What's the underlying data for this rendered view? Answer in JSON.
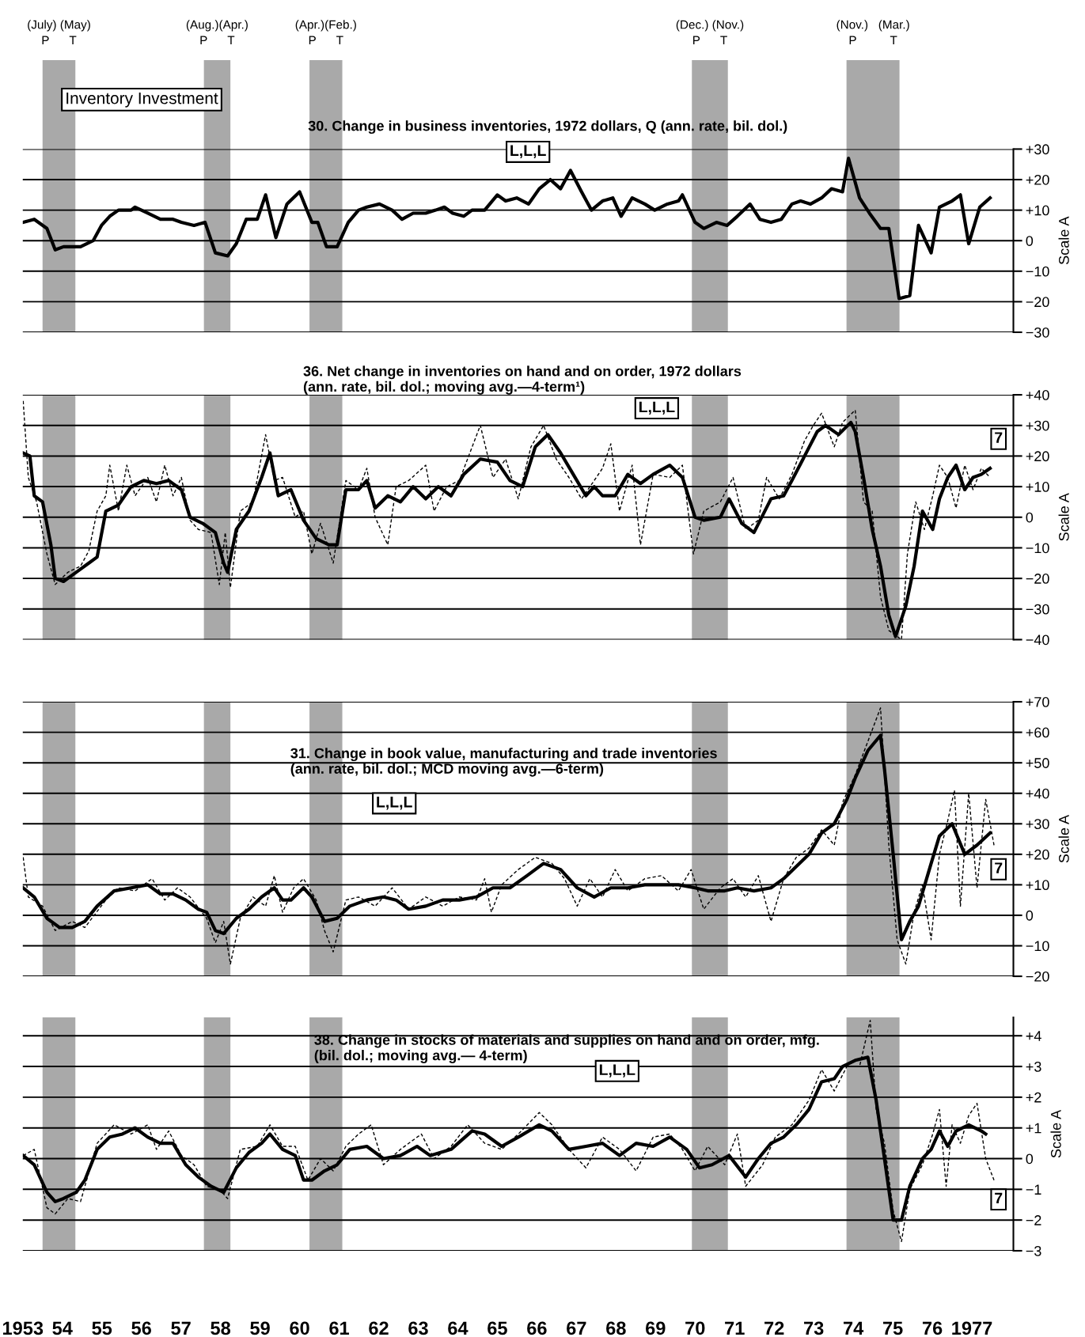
{
  "chart_data": [
    {
      "type": "line",
      "title": "Inventory Investment",
      "subtitle": "30. Change in business inventories, 1972 dollars, Q (ann. rate, bil. dol.)",
      "ylabel": "Scale A",
      "xlim": [
        1953.0,
        1978.05
      ],
      "ylim": [
        -30,
        30
      ],
      "yticks": [
        {
          "value": 30,
          "label": "+30"
        },
        {
          "value": 20,
          "label": "+20"
        },
        {
          "value": 10,
          "label": "+10"
        },
        0,
        {
          "value": -10,
          "label": "−10"
        },
        {
          "value": -20,
          "label": "−20"
        },
        {
          "value": -30,
          "label": "−30"
        }
      ],
      "tick_labels": "y",
      "grid": "y",
      "bands": [
        {
          "axis": "x",
          "from": 1953.5,
          "to": 1954.33,
          "color": "#8c8c8c",
          "label": "(July) (May)\nP      T"
        },
        {
          "axis": "x",
          "from": 1957.58,
          "to": 1958.25,
          "color": "#8c8c8c",
          "label": "(Aug.)(Apr.)\nP      T"
        },
        {
          "axis": "x",
          "from": 1960.25,
          "to": 1961.08,
          "color": "#8c8c8c",
          "label": "(Apr.)(Feb.)\nP      T"
        },
        {
          "axis": "x",
          "from": 1969.92,
          "to": 1970.83,
          "color": "#8c8c8c",
          "label": "(Dec.) (Nov.)\nP      T"
        },
        {
          "axis": "x",
          "from": 1973.83,
          "to": 1975.17,
          "color": "#8c8c8c",
          "label": "(Nov.)   (Mar.)\nP          T"
        }
      ],
      "annotations": [
        "L,L,L"
      ],
      "series": [
        {
          "color": "#000000",
          "line_style": "solid",
          "x": [
            1953.01,
            1953.29,
            1953.61,
            1953.82,
            1954.03,
            1954.25,
            1954.46,
            1954.78,
            1954.99,
            1955.2,
            1955.42,
            1955.74,
            1955.84,
            1956.16,
            1956.48,
            1956.8,
            1957.01,
            1957.33,
            1957.61,
            1957.87,
            1958.18,
            1958.4,
            1958.65,
            1958.93,
            1959.14,
            1959.4,
            1959.68,
            1960.0,
            1960.31,
            1960.46,
            1960.68,
            1960.95,
            1961.23,
            1961.49,
            1961.7,
            1962.02,
            1962.34,
            1962.59,
            1962.87,
            1963.19,
            1963.44,
            1963.66,
            1963.87,
            1964.15,
            1964.36,
            1964.68,
            1965.0,
            1965.21,
            1965.49,
            1965.79,
            1966.06,
            1966.34,
            1966.6,
            1966.85,
            1967.13,
            1967.38,
            1967.66,
            1967.92,
            1968.13,
            1968.41,
            1968.73,
            1968.98,
            1969.3,
            1969.58,
            1969.68,
            1970.0,
            1970.22,
            1970.54,
            1970.81,
            1971.07,
            1971.39,
            1971.64,
            1971.92,
            1972.18,
            1972.45,
            1972.67,
            1972.92,
            1973.2,
            1973.45,
            1973.73,
            1973.88,
            1974.16,
            1974.41,
            1974.69,
            1974.9,
            1975.16,
            1975.43,
            1975.65,
            1975.97,
            1976.18,
            1976.5,
            1976.71,
            1976.92,
            1977.2,
            1977.46
          ],
          "values": [
            6,
            7,
            4,
            -3,
            -2,
            -2,
            -2,
            0,
            5,
            8,
            10,
            10,
            11,
            9,
            7,
            7,
            6,
            5,
            6,
            -4,
            -5,
            -1,
            7,
            7,
            15,
            1,
            12,
            16,
            6,
            6,
            -2,
            -2,
            6,
            10,
            11,
            12,
            10,
            7,
            9,
            9,
            10,
            11,
            9,
            8,
            10,
            10,
            15,
            13,
            14,
            12,
            17,
            20,
            17,
            23,
            16,
            10,
            13,
            14,
            8,
            14,
            12,
            10,
            12,
            13,
            15,
            6,
            4,
            6,
            5,
            8,
            12,
            7,
            6,
            7,
            12,
            13,
            12,
            14,
            17,
            16,
            27,
            14,
            9,
            4,
            4,
            -19,
            -18,
            5,
            -4,
            11,
            13,
            15,
            -1,
            11,
            14
          ]
        }
      ]
    },
    {
      "type": "line",
      "title": "36. Net change in inventories on hand and on order, 1972 dollars\n(ann. rate, bil. dol.; moving avg.—4-term¹)",
      "ylabel": "Scale A",
      "xlim": [
        1953.0,
        1978.05
      ],
      "ylim": [
        -40,
        40
      ],
      "yticks": [
        {
          "value": 40,
          "label": "+40"
        },
        {
          "value": 30,
          "label": "+30"
        },
        {
          "value": 20,
          "label": "+20"
        },
        {
          "value": 10,
          "label": "+10"
        },
        0,
        {
          "value": -10,
          "label": "−10"
        },
        {
          "value": -20,
          "label": "−20"
        },
        {
          "value": -30,
          "label": "−30"
        },
        {
          "value": -40,
          "label": "−40"
        }
      ],
      "tick_labels": "y",
      "grid": "y",
      "bands": [
        {
          "axis": "x",
          "from": 1953.5,
          "to": 1954.33,
          "color": "#8c8c8c"
        },
        {
          "axis": "x",
          "from": 1957.58,
          "to": 1958.25,
          "color": "#8c8c8c"
        },
        {
          "axis": "x",
          "from": 1960.25,
          "to": 1961.08,
          "color": "#8c8c8c"
        },
        {
          "axis": "x",
          "from": 1969.92,
          "to": 1970.83,
          "color": "#8c8c8c"
        },
        {
          "axis": "x",
          "from": 1973.83,
          "to": 1975.17,
          "color": "#8c8c8c"
        }
      ],
      "annotations": [
        "L,L,L",
        "7"
      ],
      "series": [
        {
          "color": "#000000",
          "line_style": "dashed",
          "x": [
            1953.01,
            1953.14,
            1953.35,
            1953.61,
            1953.82,
            1954.14,
            1954.46,
            1954.67,
            1954.88,
            1955.1,
            1955.2,
            1955.42,
            1955.63,
            1955.84,
            1956.16,
            1956.38,
            1956.59,
            1956.8,
            1957.01,
            1957.23,
            1957.44,
            1957.76,
            1957.97,
            1958.12,
            1958.25,
            1958.5,
            1958.82,
            1959.14,
            1959.36,
            1959.57,
            1959.89,
            1960.1,
            1960.31,
            1960.53,
            1960.85,
            1961.17,
            1961.49,
            1961.7,
            1961.91,
            1962.23,
            1962.44,
            1962.76,
            1963.19,
            1963.4,
            1963.72,
            1964.04,
            1964.57,
            1964.89,
            1965.21,
            1965.53,
            1965.85,
            1966.17,
            1966.49,
            1966.81,
            1967.13,
            1967.45,
            1967.66,
            1967.87,
            1968.09,
            1968.41,
            1968.62,
            1968.94,
            1969.36,
            1969.68,
            1969.96,
            1970.22,
            1970.64,
            1970.96,
            1971.28,
            1971.6,
            1971.81,
            1972.13,
            1972.45,
            1972.77,
            1972.99,
            1973.2,
            1973.52,
            1973.73,
            1974.05,
            1974.26,
            1974.48,
            1974.69,
            1974.9,
            1975.22,
            1975.37,
            1975.58,
            1975.8,
            1976.01,
            1976.18,
            1976.39,
            1976.6,
            1976.82,
            1977.03,
            1977.24,
            1977.46
          ],
          "values": [
            38,
            13,
            5,
            -12,
            -22,
            -18,
            -16,
            -11,
            2,
            7,
            17,
            2,
            17,
            7,
            13,
            5,
            17,
            7,
            13,
            -1,
            -4,
            -5,
            -22,
            -5,
            -23,
            2,
            5,
            27,
            12,
            13,
            0,
            2,
            -12,
            -2,
            -15,
            12,
            9,
            16,
            0,
            -9,
            10,
            12,
            17,
            2,
            10,
            12,
            30,
            13,
            19,
            6,
            23,
            30,
            19,
            13,
            6,
            12,
            16,
            24,
            2,
            17,
            -9,
            14,
            13,
            17,
            -12,
            2,
            5,
            13,
            -4,
            -1,
            13,
            6,
            14,
            25,
            30,
            34,
            23,
            31,
            35,
            5,
            2,
            -26,
            -37,
            -40,
            -12,
            5,
            -4,
            7,
            17,
            13,
            3,
            17,
            9,
            16,
            13
          ]
        },
        {
          "color": "#000000",
          "line_style": "solid",
          "x": [
            1953.01,
            1953.18,
            1953.29,
            1953.5,
            1953.71,
            1953.82,
            1954.03,
            1954.35,
            1954.67,
            1954.88,
            1955.1,
            1955.42,
            1955.74,
            1956.06,
            1956.38,
            1956.69,
            1957.01,
            1957.23,
            1957.55,
            1957.87,
            1958.08,
            1958.18,
            1958.4,
            1958.72,
            1959.04,
            1959.25,
            1959.46,
            1959.78,
            1960.1,
            1960.42,
            1960.74,
            1960.95,
            1961.17,
            1961.49,
            1961.7,
            1961.91,
            1962.23,
            1962.55,
            1962.87,
            1963.19,
            1963.51,
            1963.83,
            1964.15,
            1964.57,
            1965.0,
            1965.32,
            1965.64,
            1965.96,
            1966.28,
            1966.6,
            1966.92,
            1967.24,
            1967.45,
            1967.66,
            1967.98,
            1968.3,
            1968.62,
            1968.94,
            1969.36,
            1969.68,
            1970.0,
            1970.22,
            1970.64,
            1970.86,
            1971.18,
            1971.49,
            1971.92,
            1972.24,
            1972.45,
            1972.77,
            1973.09,
            1973.3,
            1973.63,
            1973.94,
            1974.05,
            1974.26,
            1974.48,
            1974.69,
            1974.9,
            1975.07,
            1975.33,
            1975.54,
            1975.75,
            1976.01,
            1976.18,
            1976.39,
            1976.6,
            1976.82,
            1977.03,
            1977.24,
            1977.46
          ],
          "values": [
            21,
            20,
            7,
            5,
            -9,
            -20,
            -21,
            -18,
            -15,
            -13,
            2,
            4,
            10,
            12,
            11,
            12,
            9,
            0,
            -2,
            -5,
            -15,
            -18,
            -4,
            2,
            13,
            21,
            7,
            9,
            -1,
            -7,
            -9,
            -9,
            9,
            9,
            12,
            3,
            7,
            5,
            10,
            6,
            10,
            7,
            14,
            19,
            18,
            12,
            10,
            23,
            27,
            21,
            14,
            7,
            10,
            7,
            7,
            14,
            11,
            14,
            17,
            13,
            0,
            -1,
            0,
            6,
            -2,
            -5,
            6,
            7,
            12,
            20,
            28,
            30,
            27,
            31,
            28,
            13,
            -4,
            -16,
            -32,
            -39,
            -29,
            -16,
            2,
            -4,
            6,
            13,
            17,
            9,
            13,
            14,
            16
          ]
        }
      ]
    },
    {
      "type": "line",
      "title": "31. Change in book value, manufacturing and trade inventories\n(ann. rate, bil. dol.; MCD moving avg.—6-term)",
      "ylabel": "Scale A",
      "xlim": [
        1953.0,
        1978.05
      ],
      "ylim": [
        -20,
        70
      ],
      "yticks": [
        {
          "value": 70,
          "label": "+70"
        },
        {
          "value": 60,
          "label": "+60"
        },
        {
          "value": 50,
          "label": "+50"
        },
        {
          "value": 40,
          "label": "+40"
        },
        {
          "value": 30,
          "label": "+30"
        },
        {
          "value": 20,
          "label": "+20"
        },
        {
          "value": 10,
          "label": "+10"
        },
        0,
        {
          "value": -10,
          "label": "−10"
        },
        {
          "value": -20,
          "label": "−20"
        }
      ],
      "tick_labels": "y",
      "grid": "y",
      "bands": [
        {
          "axis": "x",
          "from": 1953.5,
          "to": 1954.33,
          "color": "#8c8c8c"
        },
        {
          "axis": "x",
          "from": 1957.58,
          "to": 1958.25,
          "color": "#8c8c8c"
        },
        {
          "axis": "x",
          "from": 1960.25,
          "to": 1961.08,
          "color": "#8c8c8c"
        },
        {
          "axis": "x",
          "from": 1969.92,
          "to": 1970.83,
          "color": "#8c8c8c"
        },
        {
          "axis": "x",
          "from": 1973.83,
          "to": 1975.17,
          "color": "#8c8c8c"
        }
      ],
      "annotations": [
        "L,L,L",
        "7"
      ],
      "series": [
        {
          "color": "#000000",
          "line_style": "dashed",
          "x": [
            1953.01,
            1953.14,
            1953.5,
            1953.82,
            1954.25,
            1954.57,
            1955.1,
            1955.42,
            1955.84,
            1956.27,
            1956.59,
            1956.91,
            1957.23,
            1957.65,
            1957.87,
            1958.08,
            1958.25,
            1958.5,
            1958.82,
            1959.14,
            1959.36,
            1959.57,
            1959.85,
            1960.1,
            1960.42,
            1960.63,
            1960.85,
            1961.17,
            1961.49,
            1961.91,
            1962.34,
            1962.76,
            1963.19,
            1963.62,
            1964.04,
            1964.47,
            1964.68,
            1964.85,
            1965.11,
            1965.53,
            1965.96,
            1966.38,
            1966.7,
            1967.02,
            1967.34,
            1967.66,
            1967.98,
            1968.3,
            1968.73,
            1969.15,
            1969.58,
            1969.9,
            1970.22,
            1970.64,
            1970.96,
            1971.28,
            1971.6,
            1971.92,
            1972.24,
            1972.56,
            1972.88,
            1973.2,
            1973.52,
            1973.73,
            1974.05,
            1974.37,
            1974.69,
            1974.9,
            1975.11,
            1975.33,
            1975.54,
            1975.75,
            1975.97,
            1976.18,
            1976.39,
            1976.56,
            1976.71,
            1976.92,
            1977.13,
            1977.35,
            1977.56
          ],
          "values": [
            19,
            6,
            3,
            -5,
            -2,
            -4,
            5,
            9,
            8,
            12,
            5,
            9,
            6,
            -1,
            -9,
            -2,
            -16,
            -1,
            6,
            3,
            13,
            1,
            9,
            12,
            5,
            -5,
            -12,
            5,
            6,
            3,
            9,
            2,
            6,
            3,
            6,
            5,
            12,
            1,
            10,
            15,
            19,
            17,
            12,
            3,
            12,
            6,
            15,
            8,
            12,
            13,
            8,
            15,
            2,
            9,
            12,
            6,
            13,
            -2,
            12,
            19,
            22,
            28,
            23,
            37,
            46,
            57,
            68,
            23,
            -8,
            -16,
            1,
            10,
            -8,
            20,
            31,
            41,
            3,
            40,
            9,
            38,
            23
          ]
        },
        {
          "color": "#000000",
          "line_style": "solid",
          "x": [
            1953.01,
            1953.29,
            1953.61,
            1953.93,
            1954.25,
            1954.57,
            1954.88,
            1955.31,
            1955.74,
            1956.16,
            1956.48,
            1956.8,
            1957.12,
            1957.44,
            1957.65,
            1957.87,
            1958.08,
            1958.4,
            1958.72,
            1959.04,
            1959.36,
            1959.57,
            1959.78,
            1960.1,
            1960.31,
            1960.63,
            1960.95,
            1961.27,
            1961.7,
            1962.12,
            1962.44,
            1962.76,
            1963.19,
            1963.62,
            1964.04,
            1964.47,
            1964.89,
            1965.32,
            1965.75,
            1966.17,
            1966.6,
            1967.02,
            1967.45,
            1967.87,
            1968.3,
            1968.73,
            1969.15,
            1969.58,
            1970.0,
            1970.32,
            1970.75,
            1971.07,
            1971.49,
            1971.92,
            1972.24,
            1972.56,
            1972.88,
            1973.2,
            1973.52,
            1973.84,
            1974.05,
            1974.37,
            1974.69,
            1974.79,
            1975.01,
            1975.22,
            1975.43,
            1975.65,
            1975.97,
            1976.18,
            1976.5,
            1976.82,
            1977.13,
            1977.46
          ],
          "values": [
            9,
            6,
            -1,
            -4,
            -4,
            -2,
            3,
            8,
            9,
            10,
            7,
            7,
            5,
            2,
            1,
            -5,
            -6,
            -1,
            2,
            6,
            9,
            5,
            5,
            9,
            6,
            -2,
            -1,
            3,
            5,
            6,
            5,
            2,
            3,
            5,
            5,
            6,
            9,
            9,
            13,
            17,
            15,
            9,
            6,
            9,
            9,
            10,
            10,
            10,
            9,
            8,
            8,
            9,
            8,
            9,
            12,
            16,
            20,
            27,
            30,
            38,
            45,
            54,
            59,
            48,
            20,
            -8,
            -2,
            3,
            17,
            26,
            30,
            20,
            23,
            27
          ]
        }
      ]
    },
    {
      "type": "line",
      "title": "38. Change in stocks of materials and supplies on hand and on order, mfg.\n(bil. dol.; moving avg.— 4-term)",
      "ylabel": "Scale A",
      "xlim": [
        1953.0,
        1978.05
      ],
      "ylim": [
        -3,
        4.6
      ],
      "yticks": [
        {
          "value": 4,
          "label": "+4"
        },
        {
          "value": 3,
          "label": "+3"
        },
        {
          "value": 2,
          "label": "+2"
        },
        {
          "value": 1,
          "label": "+1"
        },
        0,
        {
          "value": -1,
          "label": "−1"
        },
        {
          "value": -2,
          "label": "−2"
        },
        {
          "value": -3,
          "label": "−3"
        }
      ],
      "xticks": [
        1953,
        {
          "value": 1954,
          "label": "54"
        },
        {
          "value": 1955,
          "label": "55"
        },
        {
          "value": 1956,
          "label": "56"
        },
        {
          "value": 1957,
          "label": "57"
        },
        {
          "value": 1958,
          "label": "58"
        },
        {
          "value": 1959,
          "label": "59"
        },
        {
          "value": 1960,
          "label": "60"
        },
        {
          "value": 1961,
          "label": "61"
        },
        {
          "value": 1962,
          "label": "62"
        },
        {
          "value": 1963,
          "label": "63"
        },
        {
          "value": 1964,
          "label": "64"
        },
        {
          "value": 1965,
          "label": "65"
        },
        {
          "value": 1966,
          "label": "66"
        },
        {
          "value": 1967,
          "label": "67"
        },
        {
          "value": 1968,
          "label": "68"
        },
        {
          "value": 1969,
          "label": "69"
        },
        {
          "value": 1970,
          "label": "70"
        },
        {
          "value": 1971,
          "label": "71"
        },
        {
          "value": 1972,
          "label": "72"
        },
        {
          "value": 1973,
          "label": "73"
        },
        {
          "value": 1974,
          "label": "74"
        },
        {
          "value": 1975,
          "label": "75"
        },
        {
          "value": 1976,
          "label": "76"
        },
        1977
      ],
      "grid": "y",
      "bands": [
        {
          "axis": "x",
          "from": 1953.5,
          "to": 1954.33,
          "color": "#8c8c8c"
        },
        {
          "axis": "x",
          "from": 1957.58,
          "to": 1958.25,
          "color": "#8c8c8c"
        },
        {
          "axis": "x",
          "from": 1960.25,
          "to": 1961.08,
          "color": "#8c8c8c"
        },
        {
          "axis": "x",
          "from": 1969.92,
          "to": 1970.83,
          "color": "#8c8c8c"
        },
        {
          "axis": "x",
          "from": 1973.83,
          "to": 1975.17,
          "color": "#8c8c8c"
        }
      ],
      "annotations": [
        "L,L,L",
        "7"
      ],
      "series": [
        {
          "color": "#000000",
          "line_style": "dashed",
          "x": [
            1953.01,
            1953.29,
            1953.61,
            1953.82,
            1954.14,
            1954.46,
            1954.88,
            1955.31,
            1955.74,
            1956.16,
            1956.38,
            1956.69,
            1957.01,
            1957.33,
            1957.65,
            1957.97,
            1958.18,
            1958.5,
            1958.93,
            1959.25,
            1959.57,
            1959.89,
            1960.21,
            1960.53,
            1960.85,
            1961.17,
            1961.49,
            1961.81,
            1962.12,
            1962.55,
            1963.08,
            1963.4,
            1963.83,
            1964.25,
            1964.68,
            1965.11,
            1965.53,
            1966.06,
            1966.38,
            1966.81,
            1967.24,
            1967.66,
            1968.09,
            1968.51,
            1968.94,
            1969.36,
            1969.68,
            1970.0,
            1970.32,
            1970.75,
            1971.07,
            1971.28,
            1971.71,
            1972.03,
            1972.45,
            1972.88,
            1973.2,
            1973.52,
            1973.84,
            1974.16,
            1974.43,
            1974.58,
            1974.79,
            1975.01,
            1975.22,
            1975.43,
            1975.75,
            1976.01,
            1976.18,
            1976.35,
            1976.5,
            1976.71,
            1976.92,
            1977.13,
            1977.35,
            1977.56
          ],
          "values": [
            0.1,
            0.3,
            -1.6,
            -1.8,
            -1.3,
            -1.4,
            0.5,
            1.1,
            0.8,
            1.1,
            0.3,
            0.9,
            0.1,
            -0.2,
            -0.9,
            -1,
            -1.3,
            0.3,
            0.4,
            1.1,
            0.4,
            0.4,
            -0.7,
            0,
            -0.4,
            0.4,
            0.8,
            1.1,
            -0.2,
            0.3,
            0.8,
            0,
            0.4,
            1.1,
            0.5,
            0.3,
            0.8,
            1.5,
            1.1,
            0.3,
            -0.3,
            0.7,
            0.3,
            -0.4,
            0.7,
            0.8,
            0.3,
            -0.4,
            0.4,
            -0.2,
            0.8,
            -0.9,
            -0.2,
            0.7,
            1.1,
            1.9,
            2.9,
            2.2,
            3.0,
            3.0,
            4.5,
            1.6,
            0.5,
            -1.7,
            -2.7,
            -1.0,
            -0.2,
            0.8,
            1.6,
            -0.9,
            1.1,
            0.5,
            1.4,
            1.8,
            0,
            -0.7
          ]
        },
        {
          "color": "#000000",
          "line_style": "solid",
          "x": [
            1953.01,
            1953.29,
            1953.61,
            1953.82,
            1954.03,
            1954.35,
            1954.57,
            1954.88,
            1955.2,
            1955.52,
            1955.84,
            1956.16,
            1956.48,
            1956.8,
            1957.12,
            1957.44,
            1957.76,
            1958.08,
            1958.4,
            1958.72,
            1959.04,
            1959.25,
            1959.57,
            1959.89,
            1960.1,
            1960.31,
            1960.63,
            1960.95,
            1961.27,
            1961.7,
            1962.12,
            1962.55,
            1962.97,
            1963.3,
            1963.83,
            1964.36,
            1964.68,
            1965.11,
            1965.53,
            1966.06,
            1966.38,
            1966.81,
            1967.24,
            1967.66,
            1968.09,
            1968.51,
            1968.94,
            1969.36,
            1969.79,
            1970.11,
            1970.43,
            1970.86,
            1971.28,
            1971.6,
            1971.92,
            1972.24,
            1972.56,
            1972.88,
            1973.2,
            1973.52,
            1973.73,
            1974.05,
            1974.37,
            1974.58,
            1974.79,
            1975.01,
            1975.22,
            1975.43,
            1975.75,
            1975.97,
            1976.18,
            1976.39,
            1976.6,
            1976.92,
            1977.24,
            1977.35
          ],
          "values": [
            0.1,
            -0.2,
            -1.1,
            -1.4,
            -1.3,
            -1.1,
            -0.7,
            0.3,
            0.7,
            0.8,
            1.0,
            0.7,
            0.5,
            0.5,
            -0.2,
            -0.6,
            -0.9,
            -1.1,
            -0.3,
            0.2,
            0.5,
            0.8,
            0.3,
            0.1,
            -0.7,
            -0.7,
            -0.4,
            -0.2,
            0.3,
            0.4,
            0,
            0.1,
            0.4,
            0.1,
            0.3,
            0.9,
            0.8,
            0.4,
            0.7,
            1.1,
            0.9,
            0.3,
            0.4,
            0.5,
            0.1,
            0.5,
            0.4,
            0.7,
            0.3,
            -0.3,
            -0.2,
            0.1,
            -0.6,
            0,
            0.5,
            0.7,
            1.1,
            1.6,
            2.5,
            2.6,
            3.0,
            3.2,
            3.3,
            1.9,
            0,
            -2.0,
            -2.0,
            -0.9,
            0,
            0.3,
            0.9,
            0.4,
            0.9,
            1.1,
            0.9,
            0.8
          ]
        }
      ]
    }
  ]
}
